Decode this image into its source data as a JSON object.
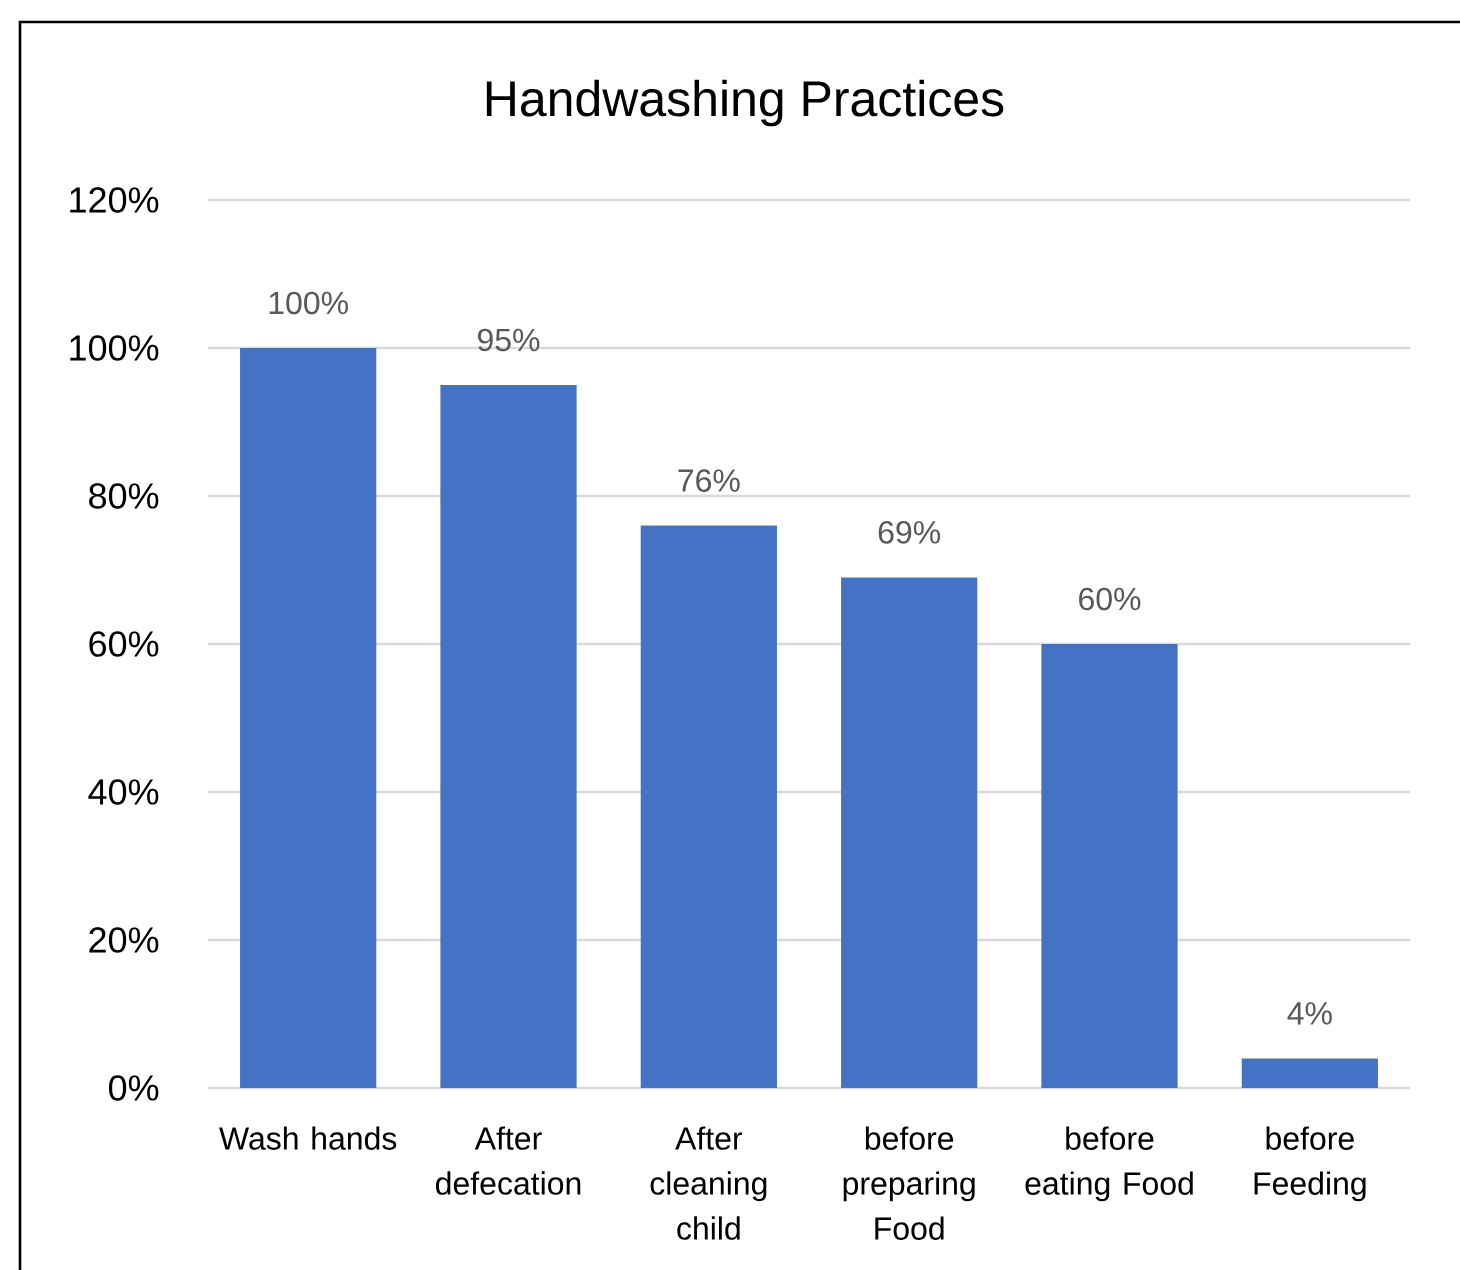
{
  "chart_data": {
    "type": "bar",
    "title": "Handwashing Practices",
    "categories": [
      "Wash hands",
      "After defecation",
      "After cleaning child",
      "before preparing Food",
      "before eating Food",
      "before Feeding"
    ],
    "values": [
      100,
      95,
      76,
      69,
      60,
      4
    ],
    "value_labels": [
      "100%",
      "95%",
      "76%",
      "69%",
      "60%",
      "4%"
    ],
    "color": "#4472c4",
    "ylim": [
      0,
      120
    ],
    "yticks": [
      {
        "value": 0,
        "label": "0%"
      },
      {
        "value": 20,
        "label": "20%"
      },
      {
        "value": 40,
        "label": "40%"
      },
      {
        "value": 60,
        "label": "60%"
      },
      {
        "value": 80,
        "label": "80%"
      },
      {
        "value": 100,
        "label": "100%"
      },
      {
        "value": 120,
        "label": "120%"
      }
    ],
    "grid": "y"
  }
}
